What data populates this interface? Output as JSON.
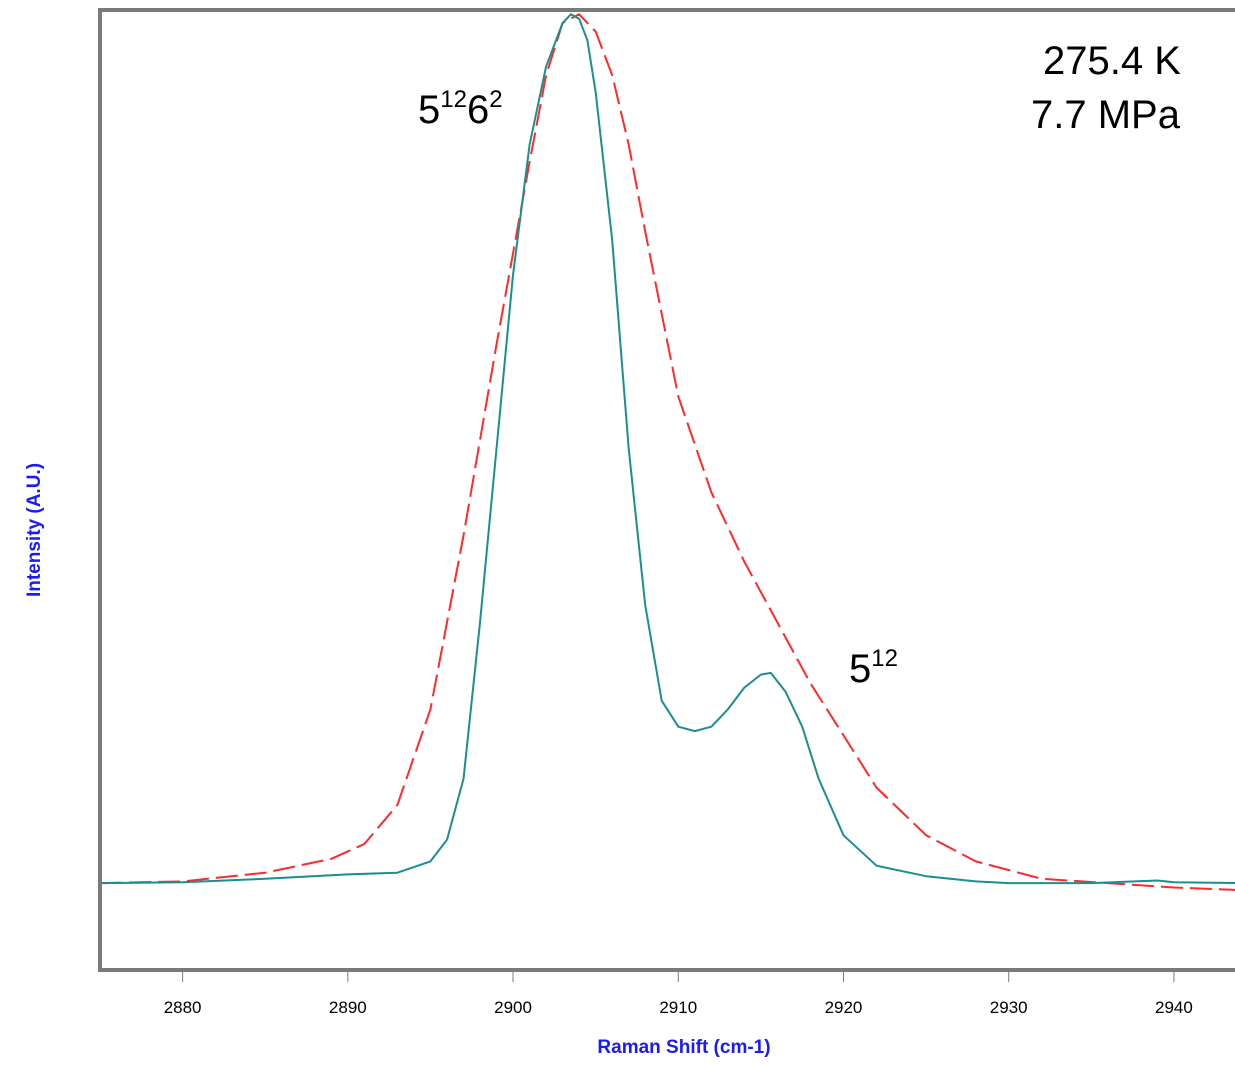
{
  "chart_data": {
    "type": "line",
    "xlabel": "Raman Shift (cm-1)",
    "ylabel": "Intensity (A.U.)",
    "xlim": [
      2875,
      2944
    ],
    "ylim": [
      -0.1,
      1.005
    ],
    "x_ticks": [
      2880,
      2890,
      2900,
      2910,
      2920,
      2930,
      2940
    ],
    "grid": false,
    "annotations": [
      {
        "text": "275.4 K",
        "position": "top-right"
      },
      {
        "text": "7.7 MPa",
        "position": "top-right"
      },
      {
        "base": "5",
        "sup1": "12",
        "base2": "6",
        "sup2": "2",
        "label": "5¹²6²",
        "x": 2902,
        "y": 1.0
      },
      {
        "base": "5",
        "sup1": "12",
        "label": "5¹²",
        "x": 2921,
        "y": 0.26
      }
    ],
    "series": [
      {
        "color": "#ff2a2a",
        "style": "dashed",
        "x": [
          2875,
          2880,
          2885,
          2889,
          2891,
          2893,
          2895,
          2897,
          2899,
          2901,
          2902,
          2903,
          2904,
          2905,
          2906,
          2907,
          2908,
          2910,
          2912,
          2914,
          2916,
          2918,
          2920,
          2922,
          2925,
          2928,
          2932,
          2936,
          2940,
          2944
        ],
        "y": [
          0.0,
          0.002,
          0.012,
          0.028,
          0.045,
          0.09,
          0.2,
          0.4,
          0.62,
          0.83,
          0.93,
          0.99,
          1.0,
          0.98,
          0.93,
          0.85,
          0.75,
          0.56,
          0.45,
          0.37,
          0.3,
          0.23,
          0.17,
          0.11,
          0.055,
          0.025,
          0.005,
          0.0,
          -0.005,
          -0.008
        ]
      },
      {
        "color": "#1a8f8f",
        "style": "solid",
        "x": [
          2875,
          2880,
          2885,
          2890,
          2893,
          2895,
          2896,
          2897,
          2898,
          2899,
          2900,
          2901,
          2902,
          2903,
          2903.5,
          2904,
          2904.5,
          2905,
          2906,
          2907,
          2908,
          2909,
          2910,
          2911,
          2912,
          2913,
          2914,
          2915,
          2915.6,
          2916.5,
          2917.5,
          2918.5,
          2920,
          2922,
          2925,
          2928,
          2930,
          2935,
          2939,
          2940,
          2944
        ],
        "y": [
          0.0,
          0.001,
          0.005,
          0.01,
          0.012,
          0.025,
          0.05,
          0.12,
          0.3,
          0.5,
          0.7,
          0.85,
          0.94,
          0.99,
          1.0,
          0.995,
          0.97,
          0.91,
          0.74,
          0.5,
          0.32,
          0.21,
          0.18,
          0.175,
          0.18,
          0.2,
          0.225,
          0.24,
          0.242,
          0.22,
          0.18,
          0.12,
          0.055,
          0.02,
          0.008,
          0.002,
          0.0,
          0.0,
          0.003,
          0.001,
          0.0
        ]
      }
    ]
  }
}
